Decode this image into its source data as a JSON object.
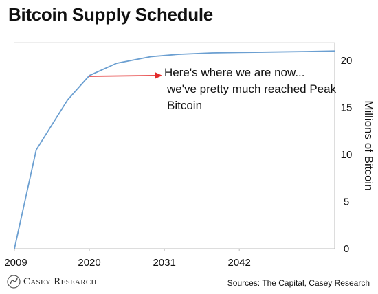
{
  "title": "Bitcoin Supply Schedule",
  "sources": "Sources: The Capital, Casey Research",
  "logo_text": "Casey Research",
  "colors": {
    "line": "#6b9fd1",
    "arrow": "#e32b2b",
    "axis": "#bbbbbb",
    "grid": "#dddddd"
  },
  "chart_data": {
    "type": "line",
    "title": "Bitcoin Supply Schedule",
    "xlabel": "",
    "ylabel": "Millions of Bitcoin",
    "x_ticks": [
      "2009",
      "2020",
      "2031",
      "2042"
    ],
    "y_ticks": [
      "0",
      "5",
      "10",
      "15",
      "20"
    ],
    "xlim": [
      2009,
      2056
    ],
    "ylim": [
      0,
      21
    ],
    "grid": "none",
    "series": [
      {
        "color": "#6b9fd1",
        "x": [
          2009,
          2012.2,
          2016.8,
          2020,
          2024,
          2029,
          2033,
          2038,
          2042,
          2047,
          2052,
          2056
        ],
        "y": [
          0,
          10.5,
          15.8,
          18.4,
          19.7,
          20.4,
          20.65,
          20.8,
          20.85,
          20.9,
          20.95,
          21.0
        ]
      }
    ],
    "annotations": [
      {
        "lines": [
          "Here's where we are now...",
          "we've pretty much reached Peak",
          "Bitcoin"
        ],
        "arrow_to": {
          "x": 2020,
          "y": 18.4
        }
      }
    ]
  }
}
